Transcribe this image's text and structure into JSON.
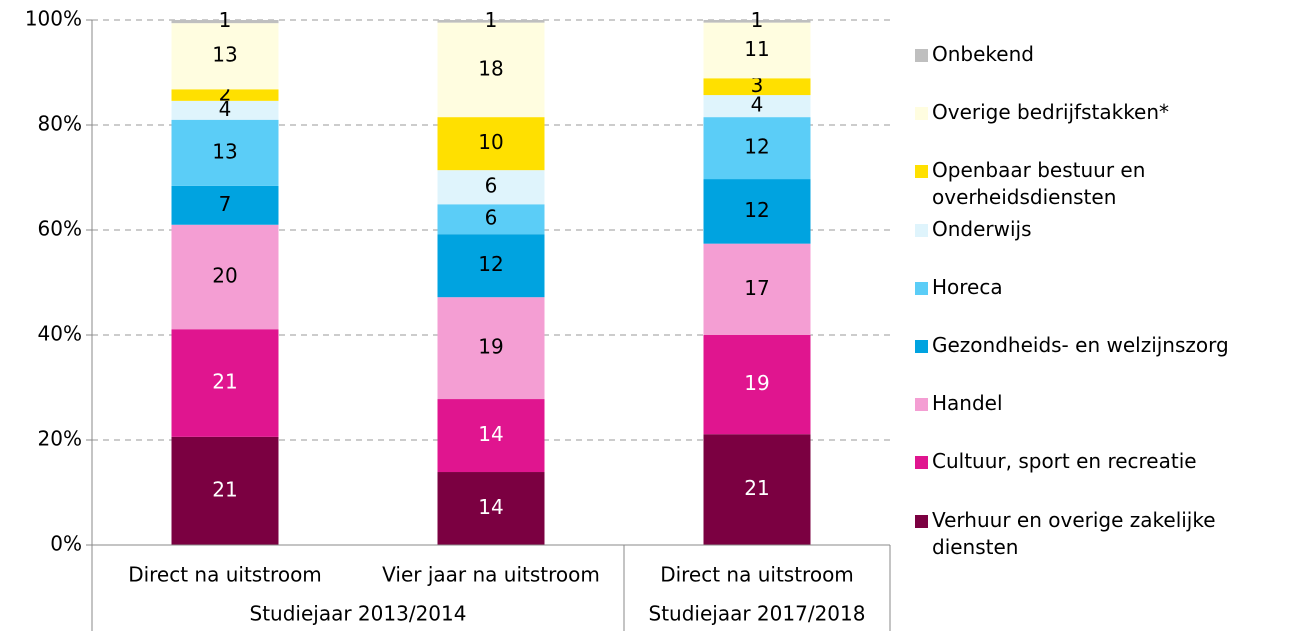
{
  "chart_data": {
    "type": "stacked_bar",
    "groups": [
      {
        "name": "Studiejaar 2013/2014",
        "categories": [
          "Direct na uitstroom",
          "Vier jaar na uitstroom"
        ]
      },
      {
        "name": "Studiejaar 2017/2018",
        "categories": [
          "Direct na uitstroom"
        ]
      }
    ],
    "series": [
      {
        "name": "Verhuur en overige zakelijke diensten",
        "color": "#7b0041",
        "label_color": "#ffffff",
        "values": [
          20.6,
          13.9,
          21.1
        ],
        "value_labels": [
          "21",
          "14",
          "21"
        ]
      },
      {
        "name": "Cultuur, sport en recreatie",
        "color": "#e0158f",
        "label_color": "#ffffff",
        "values": [
          20.5,
          13.9,
          18.9
        ],
        "value_labels": [
          "21",
          "14",
          "19"
        ]
      },
      {
        "name": "Handel",
        "color": "#f49ed3",
        "label_color": "#000000",
        "values": [
          19.9,
          19.4,
          17.4
        ],
        "value_labels": [
          "20",
          "19",
          "17"
        ]
      },
      {
        "name": "Gezondheids- en welzijnszorg",
        "color": "#00a3e0",
        "label_color": "#000000",
        "values": [
          7.4,
          12.0,
          12.3
        ],
        "value_labels": [
          "7",
          "12",
          "12"
        ]
      },
      {
        "name": "Horeca",
        "color": "#5bcdf7",
        "label_color": "#000000",
        "values": [
          12.6,
          5.7,
          11.8
        ],
        "value_labels": [
          "13",
          "6",
          "12"
        ]
      },
      {
        "name": "Onderwijs",
        "color": "#dff4fc",
        "label_color": "#000000",
        "values": [
          3.6,
          6.5,
          4.2
        ],
        "value_labels": [
          "4",
          "6",
          "4"
        ]
      },
      {
        "name": "Openbaar bestuur en overheidsdiensten",
        "color": "#ffe000",
        "label_color": "#000000",
        "values": [
          2.2,
          10.1,
          3.2
        ],
        "value_labels": [
          "2",
          "10",
          "3"
        ]
      },
      {
        "name": "Overige bedrijfstakken*",
        "color": "#fffde0",
        "label_color": "#000000",
        "values": [
          12.6,
          18.0,
          10.6
        ],
        "value_labels": [
          "13",
          "18",
          "11"
        ]
      },
      {
        "name": "Onbekend",
        "color": "#bfbfbf",
        "label_color": "#000000",
        "values": [
          0.6,
          0.5,
          0.5
        ],
        "value_labels": [
          "1",
          "1",
          "1"
        ]
      }
    ],
    "ylim": [
      0,
      100
    ],
    "yticks": [
      {
        "value": 0,
        "label": "0%"
      },
      {
        "value": 20,
        "label": "20%"
      },
      {
        "value": 40,
        "label": "40%"
      },
      {
        "value": 60,
        "label": "60%"
      },
      {
        "value": 80,
        "label": "80%"
      },
      {
        "value": 100,
        "label": "100%"
      }
    ],
    "grid": true
  }
}
